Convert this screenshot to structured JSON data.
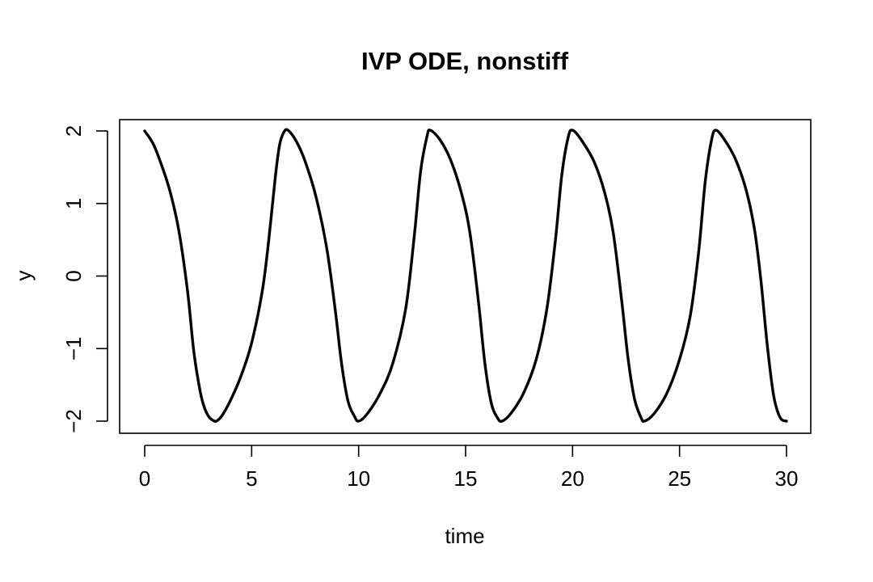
{
  "chart_data": {
    "type": "line",
    "title": "IVP ODE, nonstiff",
    "xlabel": "time",
    "ylabel": "y",
    "xlim": [
      0,
      30
    ],
    "ylim": [
      -2,
      2
    ],
    "x_ticks": [
      0,
      5,
      10,
      15,
      20,
      25,
      30
    ],
    "x_tick_labels": [
      "0",
      "5",
      "10",
      "15",
      "20",
      "25",
      "30"
    ],
    "y_ticks": [
      -2,
      -1,
      0,
      1,
      2
    ],
    "y_tick_labels": [
      "−2",
      "−1",
      "0",
      "1",
      "2"
    ],
    "grid": false,
    "legend": "none",
    "line_color": "#000000",
    "series": [
      {
        "x": [
          0,
          0.4,
          0.8,
          1.2,
          1.6,
          2.0,
          2.3,
          2.6,
          2.8,
          3.0,
          3.2,
          3.35,
          3.6,
          4.0,
          4.5,
          5.0,
          5.5,
          5.8,
          6.1,
          6.3,
          6.5,
          6.7,
          7.1,
          7.5,
          8.0,
          8.5,
          8.9,
          9.2,
          9.5,
          9.8,
          10.0,
          10.4,
          11.0,
          11.6,
          12.2,
          12.6,
          12.9,
          13.2,
          13.35,
          13.8,
          14.3,
          14.8,
          15.2,
          15.6,
          15.9,
          16.2,
          16.5,
          16.7,
          17.1,
          17.7,
          18.3,
          18.8,
          19.2,
          19.5,
          19.8,
          20.0,
          20.4,
          21.0,
          21.5,
          21.9,
          22.3,
          22.6,
          22.9,
          23.2,
          23.35,
          23.8,
          24.4,
          25.0,
          25.5,
          25.9,
          26.2,
          26.5,
          26.7,
          27.1,
          27.6,
          28.1,
          28.5,
          28.8,
          29.1,
          29.4,
          29.7,
          30.0
        ],
        "y": [
          2.0,
          1.82,
          1.52,
          1.15,
          0.62,
          -0.2,
          -1.05,
          -1.6,
          -1.82,
          -1.94,
          -1.99,
          -2.0,
          -1.93,
          -1.72,
          -1.38,
          -0.92,
          -0.2,
          0.5,
          1.35,
          1.8,
          1.98,
          2.01,
          1.85,
          1.58,
          1.1,
          0.4,
          -0.45,
          -1.2,
          -1.72,
          -1.93,
          -2.0,
          -1.9,
          -1.62,
          -1.2,
          -0.45,
          0.55,
          1.45,
          1.93,
          2.01,
          1.88,
          1.6,
          1.15,
          0.6,
          -0.35,
          -1.2,
          -1.75,
          -1.96,
          -2.0,
          -1.9,
          -1.62,
          -1.15,
          -0.45,
          0.5,
          1.4,
          1.92,
          2.01,
          1.88,
          1.58,
          1.15,
          0.6,
          -0.35,
          -1.15,
          -1.7,
          -1.95,
          -2.0,
          -1.9,
          -1.62,
          -1.15,
          -0.55,
          0.35,
          1.3,
          1.88,
          2.01,
          1.88,
          1.62,
          1.2,
          0.65,
          -0.05,
          -0.95,
          -1.65,
          -1.95,
          -2.0
        ]
      }
    ]
  }
}
